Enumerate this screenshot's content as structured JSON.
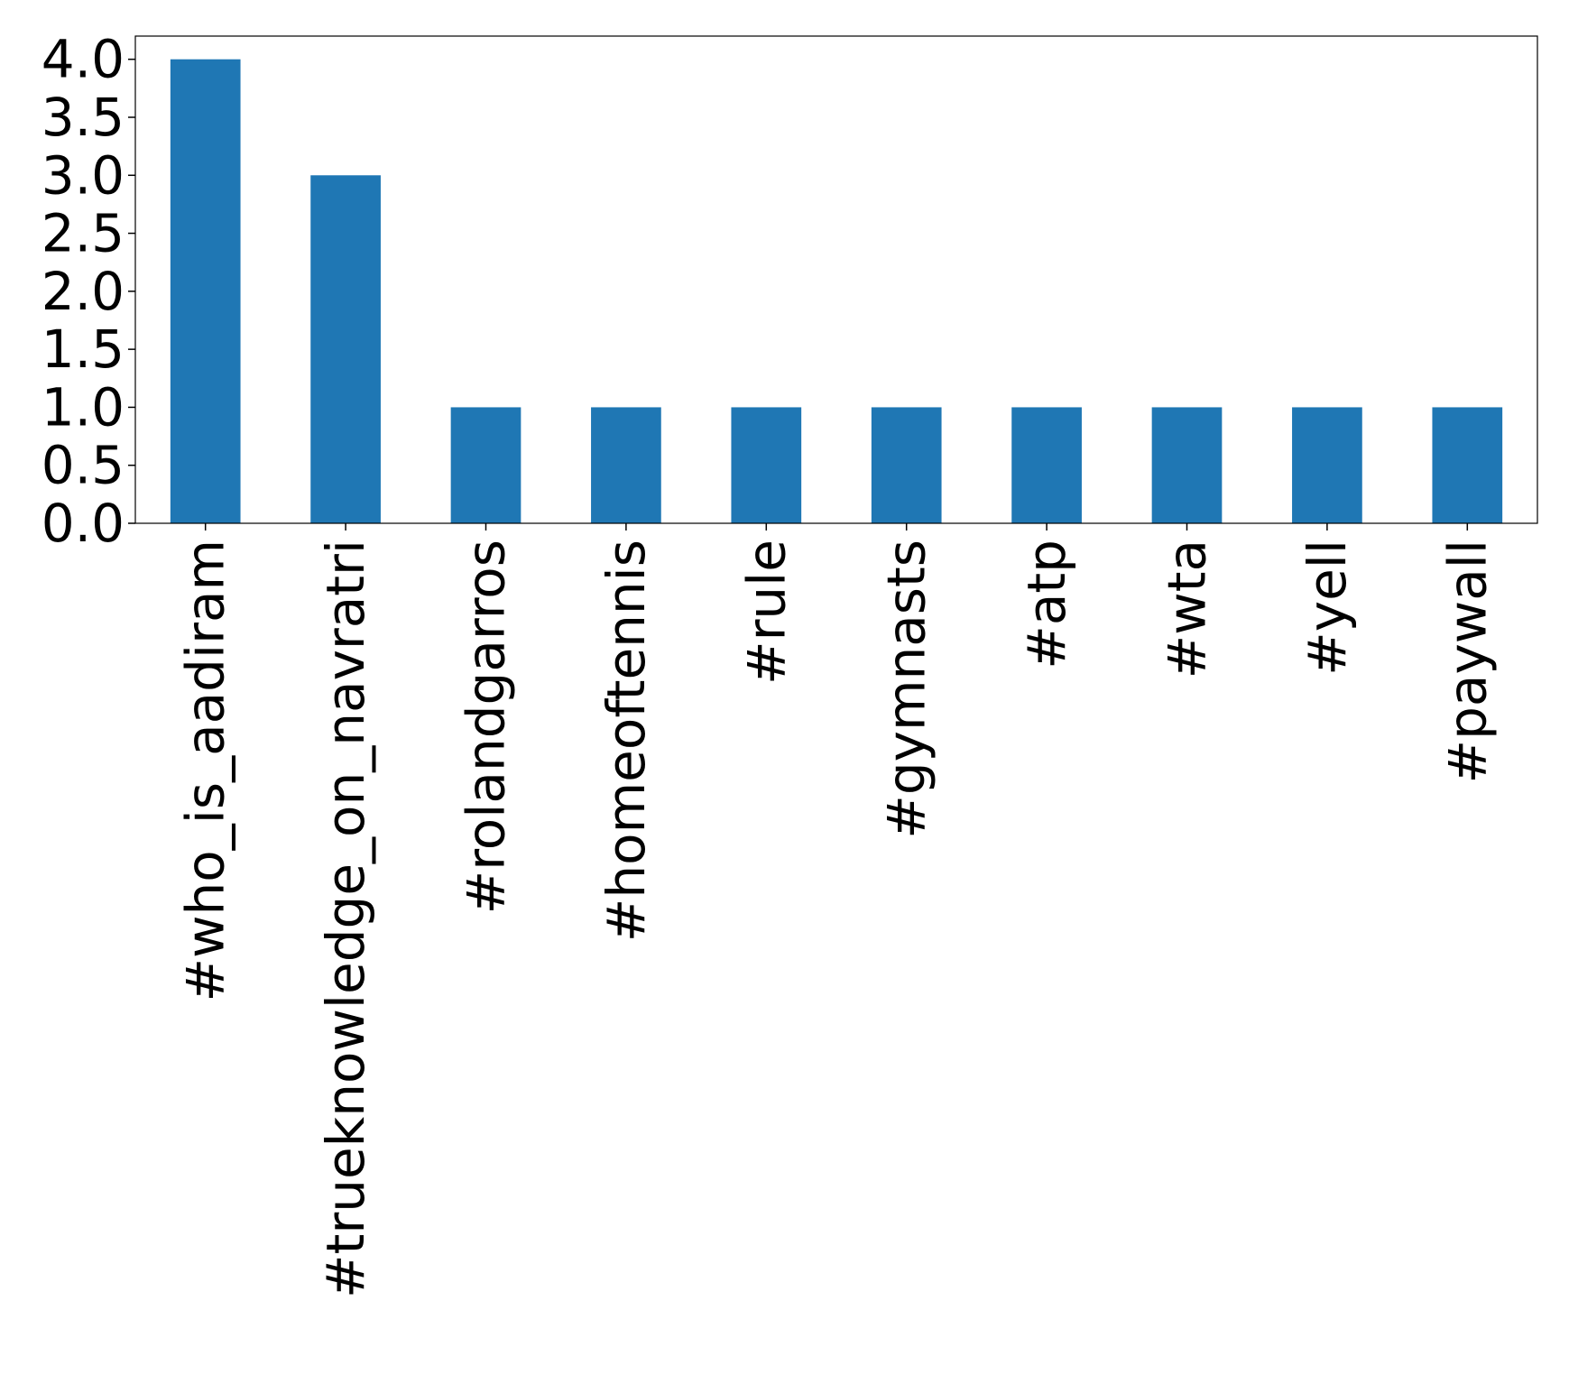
{
  "chart_data": {
    "type": "bar",
    "title": "",
    "xlabel": "",
    "ylabel": "",
    "categories": [
      "#who_is_aadiram",
      "#trueknowledge_on_navratri",
      "#rolandgarros",
      "#homeoftennis",
      "#rule",
      "#gymnasts",
      "#atp",
      "#wta",
      "#yell",
      "#paywall"
    ],
    "values": [
      4,
      3,
      1,
      1,
      1,
      1,
      1,
      1,
      1,
      1
    ],
    "ylim": [
      0,
      4.2
    ],
    "y_ticks": [
      "0.0",
      "0.5",
      "1.0",
      "1.5",
      "2.0",
      "2.5",
      "3.0",
      "3.5",
      "4.0"
    ],
    "bar_color": "#1f77b4",
    "grid": false,
    "legend": "none"
  }
}
